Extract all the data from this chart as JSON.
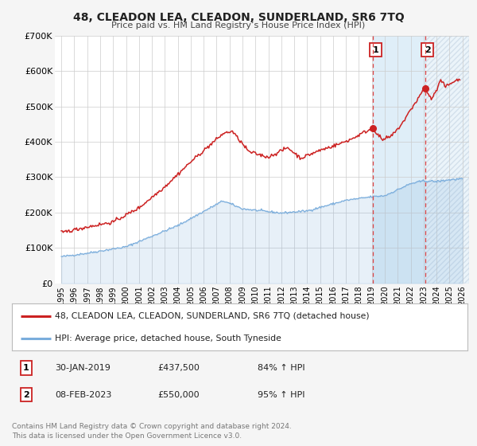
{
  "title": "48, CLEADON LEA, CLEADON, SUNDERLAND, SR6 7TQ",
  "subtitle": "Price paid vs. HM Land Registry’s House Price Index (HPI)",
  "xlim": [
    1994.5,
    2026.5
  ],
  "ylim": [
    0,
    700000
  ],
  "yticks": [
    0,
    100000,
    200000,
    300000,
    400000,
    500000,
    600000,
    700000
  ],
  "ytick_labels": [
    "£0",
    "£100K",
    "£200K",
    "£300K",
    "£400K",
    "£500K",
    "£600K",
    "£700K"
  ],
  "xticks": [
    1995,
    1996,
    1997,
    1998,
    1999,
    2000,
    2001,
    2002,
    2003,
    2004,
    2005,
    2006,
    2007,
    2008,
    2009,
    2010,
    2011,
    2012,
    2013,
    2014,
    2015,
    2016,
    2017,
    2018,
    2019,
    2020,
    2021,
    2022,
    2023,
    2024,
    2025,
    2026
  ],
  "sale1_x": 2019.08,
  "sale1_y": 437500,
  "sale2_x": 2023.11,
  "sale2_y": 550000,
  "background_color": "#f5f5f5",
  "plot_bg_color": "#ffffff",
  "hpi_line_color": "#7aaddc",
  "price_line_color": "#cc2222",
  "grid_color": "#cccccc",
  "sale_dot_color": "#cc2222",
  "vline_color": "#dd4444",
  "shade_color": "#d8eaf7",
  "legend_label1": "48, CLEADON LEA, CLEADON, SUNDERLAND, SR6 7TQ (detached house)",
  "legend_label2": "HPI: Average price, detached house, South Tyneside",
  "annotation1_label": "1",
  "annotation2_label": "2",
  "table_row1": [
    "1",
    "30-JAN-2019",
    "£437,500",
    "84% ↑ HPI"
  ],
  "table_row2": [
    "2",
    "08-FEB-2023",
    "£550,000",
    "95% ↑ HPI"
  ],
  "footer": "Contains HM Land Registry data © Crown copyright and database right 2024.\nThis data is licensed under the Open Government Licence v3.0."
}
